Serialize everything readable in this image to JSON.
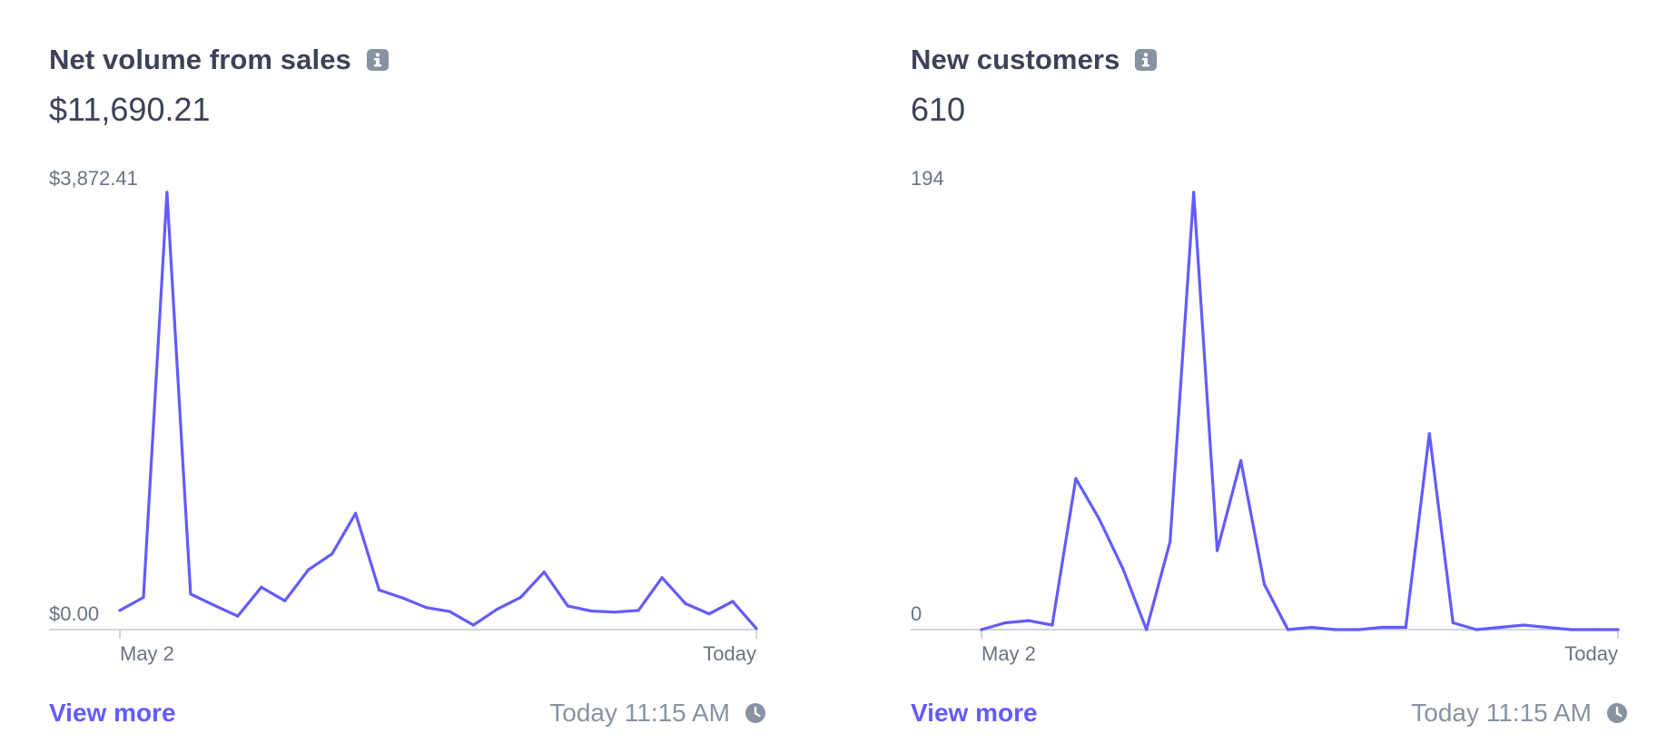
{
  "colors": {
    "accent": "#635bff",
    "text": "#3c4257",
    "muted": "#8792a2",
    "axis": "#c1c9d2"
  },
  "icons": {
    "info": "info-icon",
    "clock": "clock-icon"
  },
  "cards": [
    {
      "title": "Net volume from sales",
      "metric": "$11,690.21",
      "view_more": "View more",
      "timestamp": "Today 11:15 AM",
      "chart_data": {
        "type": "line",
        "ymax_label": "$3,872.41",
        "ymin_label": "$0.00",
        "ylim": [
          0,
          3872.41
        ],
        "x_start_label": "May 2",
        "x_end_label": "Today",
        "grid": false,
        "values": [
          170,
          285,
          3872.41,
          315,
          215,
          120,
          375,
          255,
          530,
          670,
          1030,
          350,
          280,
          195,
          160,
          40,
          180,
          285,
          510,
          210,
          165,
          155,
          170,
          460,
          230,
          140,
          250,
          10
        ]
      }
    },
    {
      "title": "New customers",
      "metric": "610",
      "view_more": "View more",
      "timestamp": "Today 11:15 AM",
      "chart_data": {
        "type": "line",
        "ymax_label": "194",
        "ymin_label": "0",
        "ylim": [
          0,
          194
        ],
        "x_start_label": "May 2",
        "x_end_label": "Today",
        "grid": false,
        "values": [
          0,
          3,
          4,
          2,
          67,
          49,
          27,
          0,
          39,
          194,
          35,
          75,
          20,
          0,
          1,
          0,
          0,
          1,
          1,
          87,
          3,
          0,
          1,
          2,
          1,
          0,
          0,
          0
        ]
      }
    }
  ]
}
